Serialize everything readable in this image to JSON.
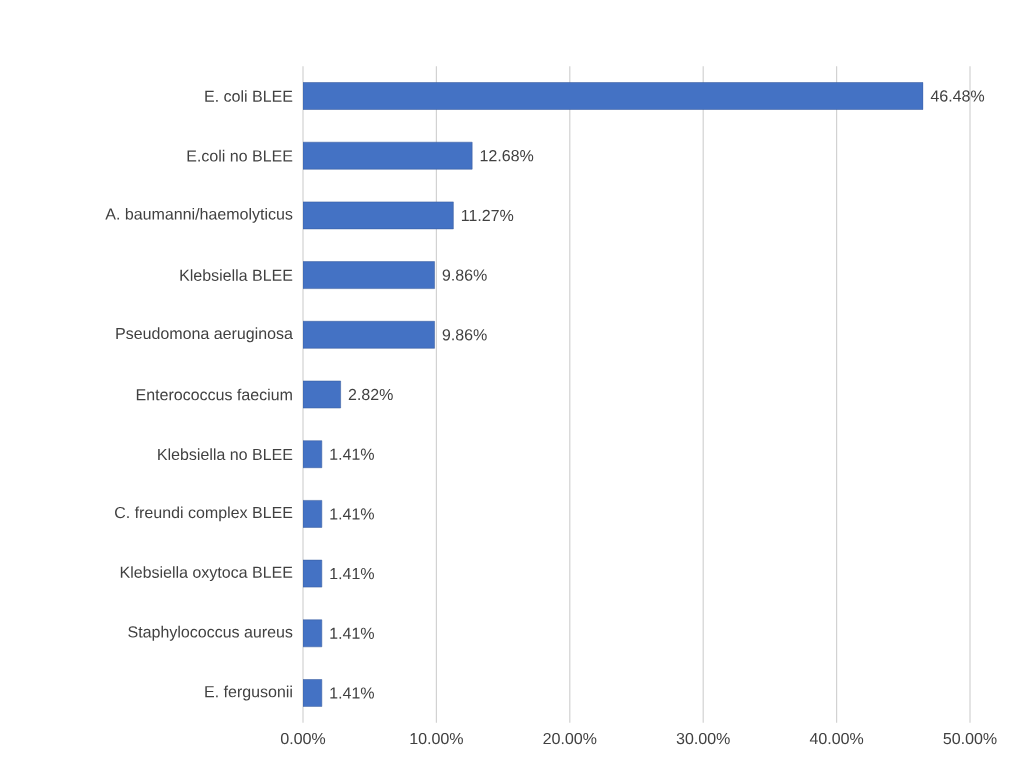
{
  "chart_data": {
    "type": "bar",
    "orientation": "horizontal",
    "categories": [
      "E. coli BLEE",
      "E.coli no BLEE",
      "A. baumanni/haemolyticus",
      "Klebsiella BLEE",
      "Pseudomona aeruginosa",
      "Enterococcus faecium",
      "Klebsiella no BLEE",
      "C. freundi complex BLEE",
      "Klebsiella oxytoca BLEE",
      "Staphylococcus aureus",
      "E. fergusonii"
    ],
    "values": [
      46.48,
      12.68,
      11.27,
      9.86,
      9.86,
      2.82,
      1.41,
      1.41,
      1.41,
      1.41,
      1.41
    ],
    "value_labels": [
      "46.48%",
      "12.68%",
      "11.27%",
      "9.86%",
      "9.86%",
      "2.82%",
      "1.41%",
      "1.41%",
      "1.41%",
      "1.41%",
      "1.41%"
    ],
    "color": "#4472c4",
    "xlim": [
      0,
      50
    ],
    "xticks": [
      {
        "value": 0,
        "label": "0.00%"
      },
      {
        "value": 10,
        "label": "10.00%"
      },
      {
        "value": 20,
        "label": "20.00%"
      },
      {
        "value": 30,
        "label": "30.00%"
      },
      {
        "value": 40,
        "label": "40.00%"
      },
      {
        "value": 50,
        "label": "50.00%"
      }
    ],
    "grid": "x"
  }
}
